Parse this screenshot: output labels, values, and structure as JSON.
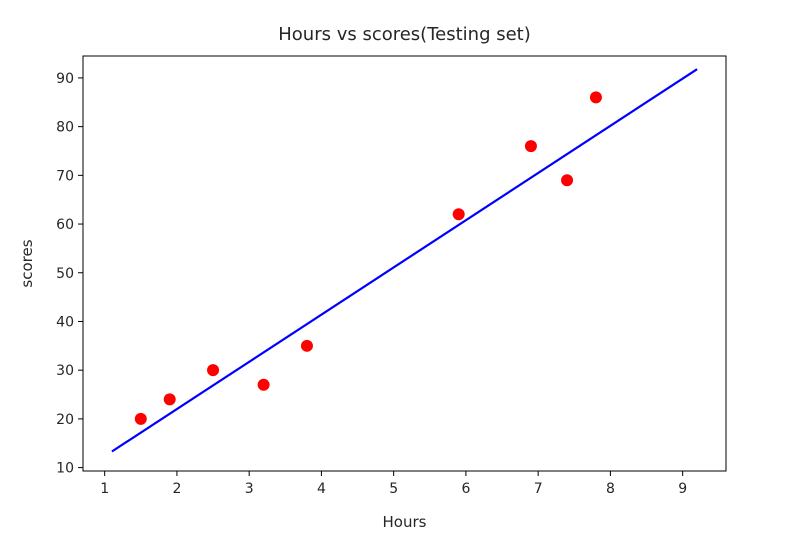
{
  "chart_data": {
    "type": "scatter",
    "title": "Hours vs scores(Testing set)",
    "xlabel": "Hours",
    "ylabel": "scores",
    "xlim": [
      0.7,
      9.6
    ],
    "ylim": [
      9.3,
      94.5
    ],
    "xticks": [
      1,
      2,
      3,
      4,
      5,
      6,
      7,
      8,
      9
    ],
    "yticks": [
      10,
      20,
      30,
      40,
      50,
      60,
      70,
      80,
      90
    ],
    "grid": false,
    "series": [
      {
        "kind": "scatter",
        "color": "#ff0000",
        "x": [
          1.5,
          1.9,
          2.5,
          3.2,
          3.8,
          5.9,
          6.9,
          7.4,
          7.8
        ],
        "y": [
          20,
          24,
          30,
          27,
          35,
          62,
          76,
          69,
          86
        ]
      },
      {
        "kind": "line",
        "color": "#0000ff",
        "x": [
          1.1,
          9.2
        ],
        "y": [
          13.3,
          91.8
        ]
      }
    ]
  }
}
